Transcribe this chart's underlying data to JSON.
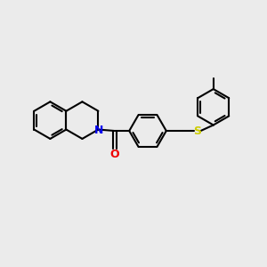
{
  "bg_color": "#ebebeb",
  "bond_color": "#000000",
  "N_color": "#0000ee",
  "O_color": "#ee0000",
  "S_color": "#cccc00",
  "line_width": 1.5,
  "figsize": [
    3.0,
    3.0
  ],
  "dpi": 100,
  "xlim": [
    0,
    10
  ],
  "ylim": [
    0,
    10
  ]
}
